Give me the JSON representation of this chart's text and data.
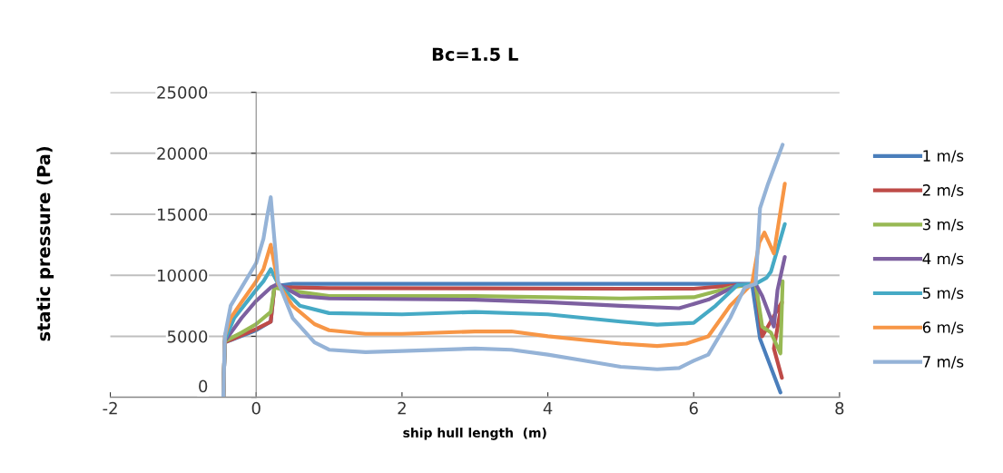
{
  "chart_data": {
    "type": "line",
    "title": "Bc=1.5 L",
    "xlabel": "ship hull length  (m)",
    "ylabel": "static pressure (Pa)",
    "xlim": [
      -2,
      8
    ],
    "xticks": [
      -2,
      0,
      2,
      4,
      6,
      8
    ],
    "ylim": [
      0,
      25000
    ],
    "yticks": [
      0,
      5000,
      10000,
      15000,
      20000,
      25000
    ],
    "grid": "y",
    "legend": "right",
    "marker": "none",
    "line_style": "solid",
    "series": [
      {
        "name": "1 m/s",
        "color": "#4a7ebb",
        "x": [
          -0.45,
          -0.43,
          0,
          0.2,
          0.25,
          0.5,
          3,
          6,
          6.8,
          6.91,
          7.19
        ],
        "values": [
          0,
          4500,
          5500,
          6200,
          9100,
          9300,
          9300,
          9300,
          9300,
          4800,
          400
        ]
      },
      {
        "name": "2 m/s",
        "color": "#be4b48",
        "x": [
          -0.45,
          -0.43,
          0,
          0.2,
          0.25,
          0.5,
          1,
          3,
          5,
          6,
          6.6,
          6.85,
          6.94,
          7.21,
          7.1,
          7.21
        ],
        "values": [
          0,
          4500,
          5600,
          6200,
          9000,
          9000,
          8950,
          8930,
          8900,
          8900,
          9200,
          9300,
          5000,
          7800,
          4000,
          1600
        ]
      },
      {
        "name": "3 m/s",
        "color": "#98b954",
        "x": [
          -0.45,
          -0.43,
          -0.2,
          0,
          0.2,
          0.25,
          0.4,
          1,
          3,
          4,
          5,
          6,
          6.5,
          6.85,
          6.94,
          7.06,
          7.19,
          7.22
        ],
        "values": [
          0,
          4600,
          5300,
          6000,
          7000,
          9000,
          8800,
          8300,
          8300,
          8200,
          8100,
          8200,
          9000,
          9300,
          5800,
          5300,
          3600,
          9500
        ]
      },
      {
        "name": "4 m/s",
        "color": "#7d60a0",
        "x": [
          -0.45,
          -0.43,
          -0.2,
          0,
          0.2,
          0.3,
          0.6,
          1,
          3,
          4,
          5,
          5.8,
          6.2,
          6.6,
          6.85,
          6.94,
          7.1,
          7.15,
          7.25
        ],
        "values": [
          0,
          4600,
          6500,
          7900,
          9000,
          9300,
          8300,
          8100,
          8000,
          7800,
          7500,
          7300,
          8000,
          9200,
          9300,
          8300,
          5800,
          8800,
          11500
        ]
      },
      {
        "name": "5 m/s",
        "color": "#46aac5",
        "x": [
          -0.45,
          -0.43,
          -0.3,
          0,
          0.1,
          0.2,
          0.3,
          0.6,
          1,
          2,
          3,
          4,
          5,
          5.5,
          6,
          6.3,
          6.6,
          6.85,
          7.0,
          7.06,
          7.25
        ],
        "values": [
          0,
          4700,
          6500,
          8800,
          9500,
          10500,
          9300,
          7500,
          6900,
          6800,
          7000,
          6800,
          6200,
          5950,
          6100,
          7500,
          9200,
          9300,
          9800,
          10300,
          14200
        ]
      },
      {
        "name": "6 m/s",
        "color": "#f79646",
        "x": [
          -0.45,
          -0.43,
          -0.35,
          -0.2,
          0,
          0.1,
          0.2,
          0.3,
          0.5,
          0.8,
          1,
          1.5,
          2,
          3,
          3.5,
          4,
          4.5,
          5,
          5.5,
          5.9,
          6.2,
          6.5,
          6.8,
          6.9,
          6.97,
          7.1,
          7.25
        ],
        "values": [
          0,
          5000,
          6500,
          7800,
          9500,
          10500,
          12500,
          9300,
          7500,
          6000,
          5500,
          5200,
          5200,
          5400,
          5400,
          5000,
          4700,
          4400,
          4200,
          4400,
          5000,
          7500,
          9300,
          12700,
          13500,
          11800,
          17500
        ]
      },
      {
        "name": "7 m/s",
        "color": "#95b3d7",
        "x": [
          -0.45,
          -0.43,
          -0.35,
          -0.2,
          0,
          0.1,
          0.15,
          0.2,
          0.3,
          0.5,
          0.8,
          1,
          1.5,
          2,
          3,
          3.5,
          4,
          4.5,
          5,
          5.5,
          5.8,
          6,
          6.2,
          6.5,
          6.7,
          6.85,
          6.91,
          7.02,
          7.22
        ],
        "values": [
          0,
          5000,
          7500,
          9000,
          11000,
          13000,
          14800,
          16400,
          9500,
          6500,
          4500,
          3900,
          3700,
          3800,
          4000,
          3900,
          3500,
          3000,
          2500,
          2300,
          2400,
          3000,
          3500,
          6500,
          9000,
          9300,
          15500,
          17500,
          20700
        ]
      }
    ]
  }
}
